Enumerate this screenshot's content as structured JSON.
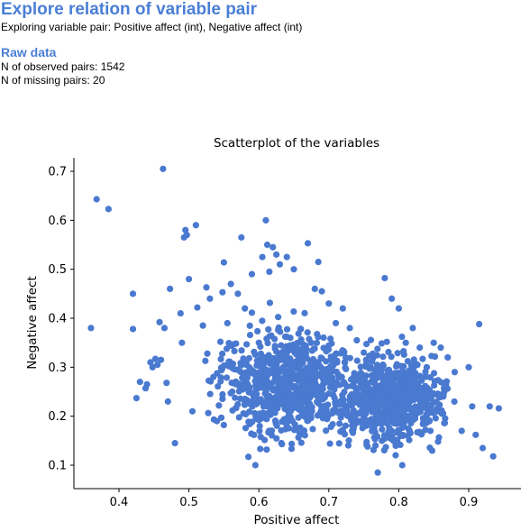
{
  "header": {
    "title": "Explore relation of variable pair",
    "subtitle": "Exploring variable pair: Positive affect (int), Negative affect (int)"
  },
  "raw": {
    "heading": "Raw data",
    "observed": "N of observed pairs: 1542",
    "missing": "N of missing pairs: 20"
  },
  "colors": {
    "accent": "#4a7fd6",
    "point": "#4a79d0"
  },
  "chart_data": {
    "type": "scatter",
    "title": "Scatterplot of the variables",
    "xlabel": "Positive affect",
    "ylabel": "Negative affect",
    "xlim": [
      0.35,
      0.95
    ],
    "ylim": [
      0.07,
      0.72
    ],
    "xticks": [
      "0.4",
      "0.5",
      "0.6",
      "0.7",
      "0.8",
      "0.9"
    ],
    "yticks": [
      "0.1",
      "0.2",
      "0.3",
      "0.4",
      "0.5",
      "0.6",
      "0.7"
    ],
    "grid": false,
    "n_points": 1542,
    "points_note": "representative sample of visible points",
    "points": [
      [
        0.36,
        0.38
      ],
      [
        0.368,
        0.643
      ],
      [
        0.385,
        0.623
      ],
      [
        0.42,
        0.45
      ],
      [
        0.42,
        0.378
      ],
      [
        0.425,
        0.237
      ],
      [
        0.43,
        0.27
      ],
      [
        0.438,
        0.257
      ],
      [
        0.44,
        0.265
      ],
      [
        0.445,
        0.31
      ],
      [
        0.448,
        0.3
      ],
      [
        0.452,
        0.317
      ],
      [
        0.455,
        0.305
      ],
      [
        0.458,
        0.392
      ],
      [
        0.46,
        0.315
      ],
      [
        0.463,
        0.705
      ],
      [
        0.465,
        0.38
      ],
      [
        0.468,
        0.268
      ],
      [
        0.47,
        0.23
      ],
      [
        0.473,
        0.46
      ],
      [
        0.48,
        0.145
      ],
      [
        0.488,
        0.41
      ],
      [
        0.49,
        0.35
      ],
      [
        0.493,
        0.565
      ],
      [
        0.495,
        0.58
      ],
      [
        0.497,
        0.57
      ],
      [
        0.5,
        0.48
      ],
      [
        0.505,
        0.21
      ],
      [
        0.51,
        0.59
      ],
      [
        0.512,
        0.422
      ],
      [
        0.52,
        0.385
      ],
      [
        0.525,
        0.463
      ],
      [
        0.53,
        0.44
      ],
      [
        0.535,
        0.28
      ],
      [
        0.54,
        0.19
      ],
      [
        0.545,
        0.352
      ],
      [
        0.548,
        0.453
      ],
      [
        0.55,
        0.514
      ],
      [
        0.555,
        0.39
      ],
      [
        0.56,
        0.47
      ],
      [
        0.565,
        0.333
      ],
      [
        0.57,
        0.45
      ],
      [
        0.575,
        0.565
      ],
      [
        0.58,
        0.42
      ],
      [
        0.585,
        0.117
      ],
      [
        0.59,
        0.49
      ],
      [
        0.595,
        0.1
      ],
      [
        0.6,
        0.35
      ],
      [
        0.605,
        0.525
      ],
      [
        0.61,
        0.6
      ],
      [
        0.612,
        0.55
      ],
      [
        0.615,
        0.495
      ],
      [
        0.62,
        0.545
      ],
      [
        0.625,
        0.53
      ],
      [
        0.63,
        0.51
      ],
      [
        0.64,
        0.525
      ],
      [
        0.645,
        0.36
      ],
      [
        0.65,
        0.5
      ],
      [
        0.66,
        0.378
      ],
      [
        0.67,
        0.553
      ],
      [
        0.68,
        0.46
      ],
      [
        0.685,
        0.515
      ],
      [
        0.69,
        0.455
      ],
      [
        0.7,
        0.43
      ],
      [
        0.71,
        0.39
      ],
      [
        0.72,
        0.42
      ],
      [
        0.73,
        0.38
      ],
      [
        0.74,
        0.355
      ],
      [
        0.75,
        0.33
      ],
      [
        0.76,
        0.3
      ],
      [
        0.77,
        0.085
      ],
      [
        0.78,
        0.482
      ],
      [
        0.79,
        0.44
      ],
      [
        0.8,
        0.42
      ],
      [
        0.805,
        0.1
      ],
      [
        0.81,
        0.35
      ],
      [
        0.82,
        0.38
      ],
      [
        0.83,
        0.34
      ],
      [
        0.84,
        0.3
      ],
      [
        0.85,
        0.35
      ],
      [
        0.86,
        0.34
      ],
      [
        0.87,
        0.32
      ],
      [
        0.88,
        0.29
      ],
      [
        0.89,
        0.17
      ],
      [
        0.9,
        0.3
      ],
      [
        0.905,
        0.22
      ],
      [
        0.91,
        0.162
      ],
      [
        0.915,
        0.388
      ],
      [
        0.92,
        0.135
      ],
      [
        0.93,
        0.22
      ],
      [
        0.935,
        0.118
      ],
      [
        0.943,
        0.216
      ]
    ]
  }
}
